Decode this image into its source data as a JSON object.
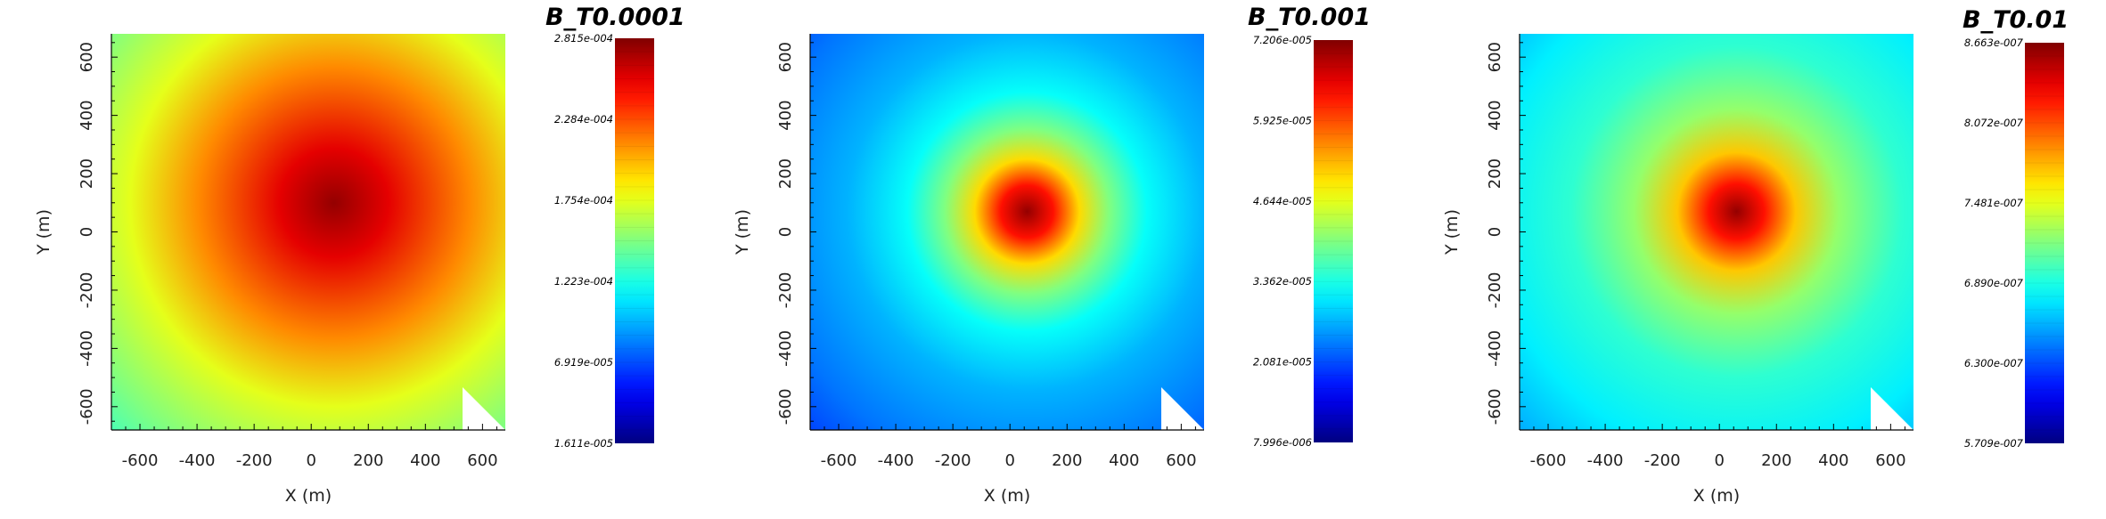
{
  "chart_data": [
    {
      "type": "heatmap",
      "title": "B_T0.0001",
      "xlabel": "X (m)",
      "ylabel": "Y (m)",
      "xlim": [
        -700,
        680
      ],
      "ylim": [
        -680,
        680
      ],
      "xticks": [
        -600,
        -400,
        -200,
        0,
        200,
        400,
        600
      ],
      "yticks": [
        -600,
        -400,
        -200,
        0,
        200,
        400,
        600
      ],
      "peak": {
        "x": 80,
        "y": 100
      },
      "colorbar": {
        "min": 1.611e-05,
        "max": 0.0002815,
        "tick_values": [
          0.0002815,
          0.0002284,
          0.0001754,
          0.0001223,
          6.919e-05,
          1.611e-05
        ],
        "tick_labels": [
          "2.815e-004",
          "2.284e-004",
          "1.754e-004",
          "1.223e-004",
          "6.919e-005",
          "1.611e-005"
        ]
      },
      "colors": {
        "high": "#ff0000",
        "mid": "#00ff00",
        "low": "#0000ff"
      }
    },
    {
      "type": "heatmap",
      "title": "B_T0.001",
      "xlabel": "X (m)",
      "ylabel": "Y (m)",
      "xlim": [
        -700,
        680
      ],
      "ylim": [
        -680,
        680
      ],
      "xticks": [
        -600,
        -400,
        -200,
        0,
        200,
        400,
        600
      ],
      "yticks": [
        -600,
        -400,
        -200,
        0,
        200,
        400,
        600
      ],
      "peak": {
        "x": 60,
        "y": 70
      },
      "colorbar": {
        "min": 7.996e-06,
        "max": 7.206e-05,
        "tick_values": [
          7.206e-05,
          5.925e-05,
          4.644e-05,
          3.362e-05,
          2.081e-05,
          7.996e-06
        ],
        "tick_labels": [
          "7.206e-005",
          "5.925e-005",
          "4.644e-005",
          "3.362e-005",
          "2.081e-005",
          "7.996e-006"
        ]
      },
      "colors": {
        "high": "#ff0000",
        "mid": "#00ff00",
        "low": "#0000ff"
      }
    },
    {
      "type": "heatmap",
      "title": "B_T0.01",
      "xlabel": "X (m)",
      "ylabel": "Y (m)",
      "xlim": [
        -700,
        680
      ],
      "ylim": [
        -680,
        680
      ],
      "xticks": [
        -600,
        -400,
        -200,
        0,
        200,
        400,
        600
      ],
      "yticks": [
        -600,
        -400,
        -200,
        0,
        200,
        400,
        600
      ],
      "peak": {
        "x": 60,
        "y": 70
      },
      "colorbar": {
        "min": 5.709e-07,
        "max": 8.663e-07,
        "tick_values": [
          8.663e-07,
          8.072e-07,
          7.481e-07,
          6.89e-07,
          6.3e-07,
          5.709e-07
        ],
        "tick_labels": [
          "8.663e-007",
          "8.072e-007",
          "7.481e-007",
          "6.890e-007",
          "6.300e-007",
          "5.709e-007"
        ]
      },
      "colors": {
        "high": "#ff0000",
        "mid": "#00ff00",
        "low": "#0000ff"
      }
    }
  ]
}
